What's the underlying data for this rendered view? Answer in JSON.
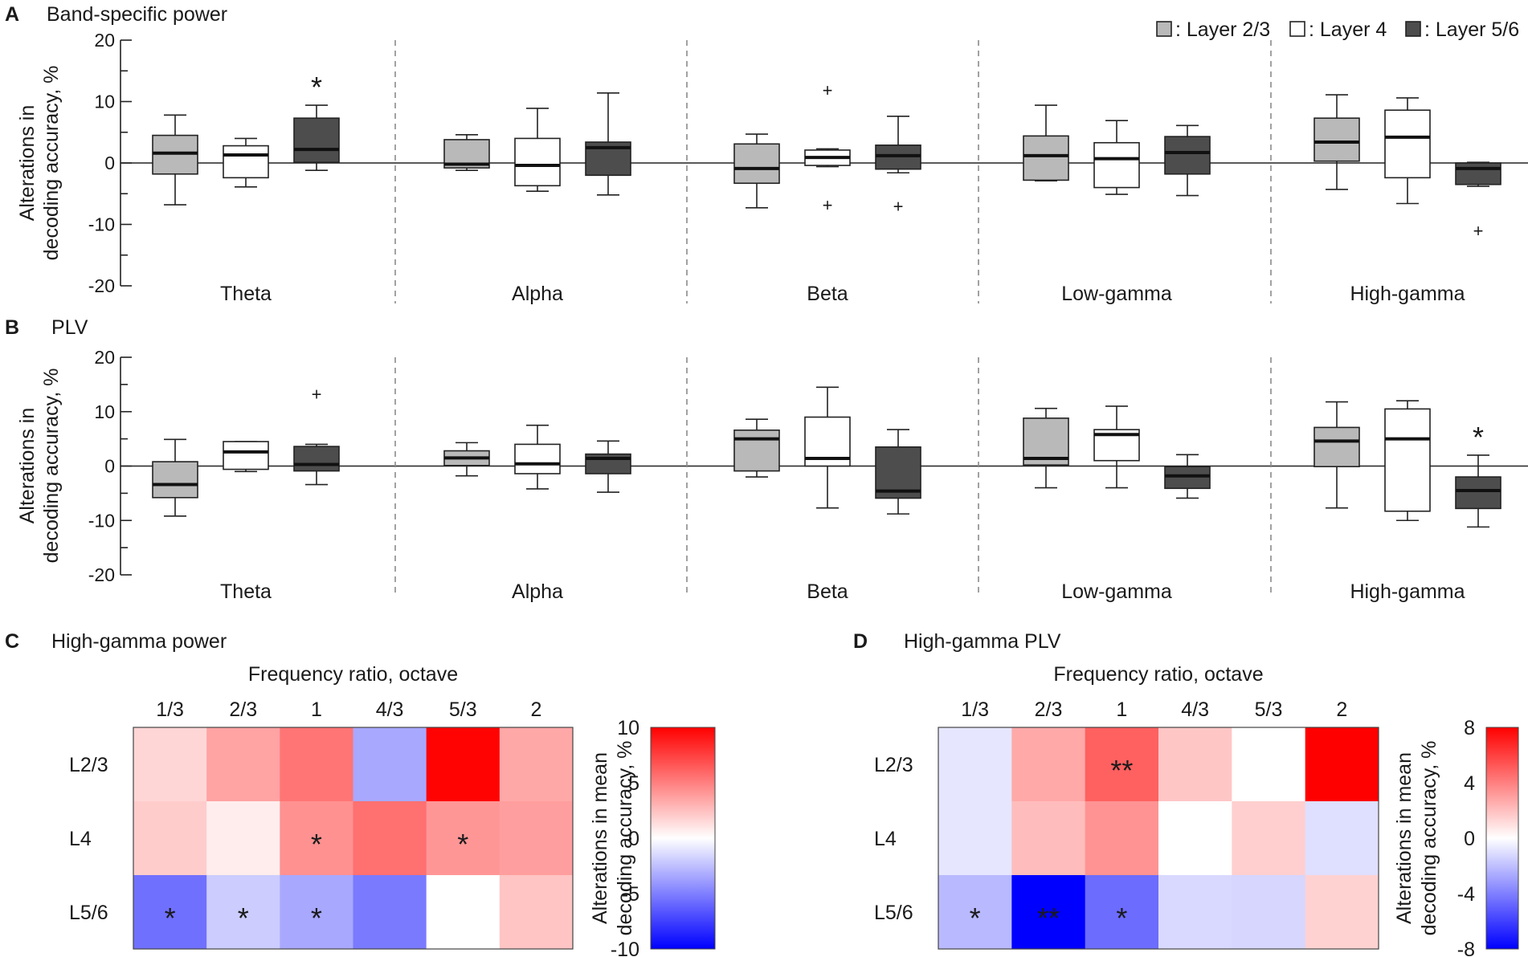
{
  "legend": {
    "entries": [
      {
        "label": ": Layer 2/3",
        "color": "#b9b9b9"
      },
      {
        "label": ": Layer 4",
        "color": "#ffffff"
      },
      {
        "label": ": Layer 5/6",
        "color": "#4d4d4d"
      }
    ]
  },
  "colors": {
    "axis": "#222222",
    "separator": "#8a8a8a",
    "median": "#111111"
  },
  "chart_data": [
    {
      "panel": "A",
      "type": "box",
      "title": "Band-specific power",
      "ylabel_lines": [
        "Alterations in",
        "decoding accuracy, %"
      ],
      "ylim": [
        -20,
        20
      ],
      "yticks": [
        -20,
        -10,
        0,
        10,
        20
      ],
      "categories": [
        "Theta",
        "Alpha",
        "Beta",
        "Low-gamma",
        "High-gamma"
      ],
      "series": [
        {
          "name": "Layer 2/3",
          "color": "#b9b9b9",
          "boxes": [
            {
              "min": -6.8,
              "q1": -1.8,
              "median": 1.6,
              "q3": 4.5,
              "max": 7.8,
              "outliers": [],
              "sig": ""
            },
            {
              "min": -1.2,
              "q1": -0.8,
              "median": -0.2,
              "q3": 3.8,
              "max": 4.6,
              "outliers": [],
              "sig": ""
            },
            {
              "min": -7.3,
              "q1": -3.3,
              "median": -0.9,
              "q3": 3.1,
              "max": 4.7,
              "outliers": [],
              "sig": ""
            },
            {
              "min": -2.9,
              "q1": -2.8,
              "median": 1.2,
              "q3": 4.4,
              "max": 9.4,
              "outliers": [],
              "sig": ""
            },
            {
              "min": -4.3,
              "q1": 0.3,
              "median": 3.4,
              "q3": 7.3,
              "max": 11.1,
              "outliers": [],
              "sig": ""
            }
          ]
        },
        {
          "name": "Layer 4",
          "color": "#ffffff",
          "boxes": [
            {
              "min": -3.9,
              "q1": -2.4,
              "median": 1.3,
              "q3": 2.8,
              "max": 4.0,
              "outliers": [],
              "sig": ""
            },
            {
              "min": -4.6,
              "q1": -3.7,
              "median": -0.4,
              "q3": 4.0,
              "max": 8.9,
              "outliers": [],
              "sig": ""
            },
            {
              "min": -0.6,
              "q1": -0.4,
              "median": 0.9,
              "q3": 2.1,
              "max": 2.3,
              "outliers": [
                11.9,
                -6.8
              ],
              "sig": ""
            },
            {
              "min": -5.1,
              "q1": -4.0,
              "median": 0.7,
              "q3": 3.3,
              "max": 6.9,
              "outliers": [],
              "sig": ""
            },
            {
              "min": -6.6,
              "q1": -2.4,
              "median": 4.2,
              "q3": 8.6,
              "max": 10.6,
              "outliers": [],
              "sig": ""
            }
          ]
        },
        {
          "name": "Layer 5/6",
          "color": "#4d4d4d",
          "boxes": [
            {
              "min": -1.2,
              "q1": 0.1,
              "median": 2.2,
              "q3": 7.3,
              "max": 9.4,
              "outliers": [],
              "sig": "*"
            },
            {
              "min": -5.2,
              "q1": -2.0,
              "median": 2.5,
              "q3": 3.4,
              "max": 11.4,
              "outliers": [],
              "sig": ""
            },
            {
              "min": -1.6,
              "q1": -1.0,
              "median": 1.2,
              "q3": 2.9,
              "max": 7.6,
              "outliers": [
                -7.0
              ],
              "sig": ""
            },
            {
              "min": -5.3,
              "q1": -1.8,
              "median": 1.7,
              "q3": 4.3,
              "max": 6.1,
              "outliers": [],
              "sig": ""
            },
            {
              "min": -3.8,
              "q1": -3.5,
              "median": -0.9,
              "q3": 0.0,
              "max": 0.1,
              "outliers": [
                -11.0
              ],
              "sig": ""
            }
          ]
        }
      ]
    },
    {
      "panel": "B",
      "type": "box",
      "title": "PLV",
      "ylabel_lines": [
        "Alterations in",
        "decoding accuracy, %"
      ],
      "ylim": [
        -20,
        20
      ],
      "yticks": [
        -20,
        -10,
        0,
        10,
        20
      ],
      "categories": [
        "Theta",
        "Alpha",
        "Beta",
        "Low-gamma",
        "High-gamma"
      ],
      "series": [
        {
          "name": "Layer 2/3",
          "color": "#b9b9b9",
          "boxes": [
            {
              "min": -9.2,
              "q1": -5.8,
              "median": -3.4,
              "q3": 0.8,
              "max": 4.9,
              "outliers": [],
              "sig": ""
            },
            {
              "min": -1.8,
              "q1": 0.1,
              "median": 1.5,
              "q3": 2.8,
              "max": 4.3,
              "outliers": [],
              "sig": ""
            },
            {
              "min": -2.0,
              "q1": -0.9,
              "median": 5.0,
              "q3": 6.6,
              "max": 8.6,
              "outliers": [],
              "sig": ""
            },
            {
              "min": -4.0,
              "q1": 0.2,
              "median": 1.4,
              "q3": 8.8,
              "max": 10.6,
              "outliers": [],
              "sig": ""
            },
            {
              "min": -7.7,
              "q1": -0.1,
              "median": 4.6,
              "q3": 7.1,
              "max": 11.8,
              "outliers": [],
              "sig": ""
            }
          ]
        },
        {
          "name": "Layer 4",
          "color": "#ffffff",
          "boxes": [
            {
              "min": -1.0,
              "q1": -0.6,
              "median": 2.6,
              "q3": 4.5,
              "max": 4.5,
              "outliers": [],
              "sig": ""
            },
            {
              "min": -4.2,
              "q1": -1.4,
              "median": 0.4,
              "q3": 4.0,
              "max": 7.5,
              "outliers": [],
              "sig": ""
            },
            {
              "min": -7.7,
              "q1": 0.0,
              "median": 1.4,
              "q3": 9.0,
              "max": 14.5,
              "outliers": [],
              "sig": ""
            },
            {
              "min": -4.0,
              "q1": 1.0,
              "median": 5.8,
              "q3": 6.7,
              "max": 11.0,
              "outliers": [],
              "sig": ""
            },
            {
              "min": -10.0,
              "q1": -8.3,
              "median": 5.0,
              "q3": 10.5,
              "max": 12.0,
              "outliers": [],
              "sig": ""
            }
          ]
        },
        {
          "name": "Layer 5/6",
          "color": "#4d4d4d",
          "boxes": [
            {
              "min": -3.4,
              "q1": -0.9,
              "median": 0.3,
              "q3": 3.6,
              "max": 4.0,
              "outliers": [
                13.3
              ],
              "sig": ""
            },
            {
              "min": -4.8,
              "q1": -1.4,
              "median": 1.4,
              "q3": 2.2,
              "max": 4.6,
              "outliers": [],
              "sig": ""
            },
            {
              "min": -8.8,
              "q1": -5.9,
              "median": -4.6,
              "q3": 3.5,
              "max": 6.7,
              "outliers": [],
              "sig": ""
            },
            {
              "min": -5.9,
              "q1": -4.1,
              "median": -1.8,
              "q3": -0.1,
              "max": 2.1,
              "outliers": [],
              "sig": ""
            },
            {
              "min": -11.2,
              "q1": -7.8,
              "median": -4.5,
              "q3": -2.0,
              "max": 2.0,
              "outliers": [],
              "sig": "*"
            }
          ]
        }
      ]
    },
    {
      "panel": "C",
      "type": "heatmap",
      "title": "High-gamma power",
      "xlabel": "Frequency ratio, octave",
      "xticklabels": [
        "1/3",
        "2/3",
        "1",
        "4/3",
        "5/3",
        "2"
      ],
      "yticklabels": [
        "L2/3",
        "L4",
        "L5/6"
      ],
      "values": [
        [
          1.6,
          3.6,
          5.4,
          -3.4,
          9.9,
          3.4
        ],
        [
          2.0,
          0.7,
          4.3,
          5.6,
          4.1,
          3.8
        ],
        [
          -5.6,
          -2.0,
          -3.4,
          -5.2,
          0.0,
          2.3
        ]
      ],
      "sig": [
        [
          "",
          "",
          "",
          "",
          "",
          ""
        ],
        [
          "",
          "",
          "*",
          "",
          "*",
          ""
        ],
        [
          "*",
          "*",
          "*",
          "",
          "",
          ""
        ]
      ],
      "colorbar": {
        "label_lines": [
          "Alterations in mean",
          "decoding accuracy, %"
        ],
        "ticks": [
          10,
          5,
          0,
          -5,
          -10
        ],
        "vmin": -10,
        "vmax": 10
      }
    },
    {
      "panel": "D",
      "type": "heatmap",
      "title": "High-gamma PLV",
      "xlabel": "Frequency ratio, octave",
      "xticklabels": [
        "1/3",
        "2/3",
        "1",
        "4/3",
        "5/3",
        "2"
      ],
      "yticklabels": [
        "L2/3",
        "L4",
        "L5/6"
      ],
      "values": [
        [
          -0.8,
          2.7,
          5.0,
          1.8,
          0.0,
          8.0
        ],
        [
          -0.8,
          2.1,
          3.4,
          0.0,
          1.5,
          -1.0
        ],
        [
          -2.2,
          -8.0,
          -4.6,
          -1.2,
          -1.3,
          1.4
        ]
      ],
      "sig": [
        [
          "",
          "",
          "**",
          "",
          "",
          ""
        ],
        [
          "",
          "",
          "",
          "",
          "",
          ""
        ],
        [
          "*",
          "**",
          "*",
          "",
          "",
          ""
        ]
      ],
      "colorbar": {
        "label_lines": [
          "Alterations in mean",
          "decoding accuracy, %"
        ],
        "ticks": [
          8,
          4,
          0,
          -4,
          -8
        ],
        "vmin": -8,
        "vmax": 8
      }
    }
  ]
}
